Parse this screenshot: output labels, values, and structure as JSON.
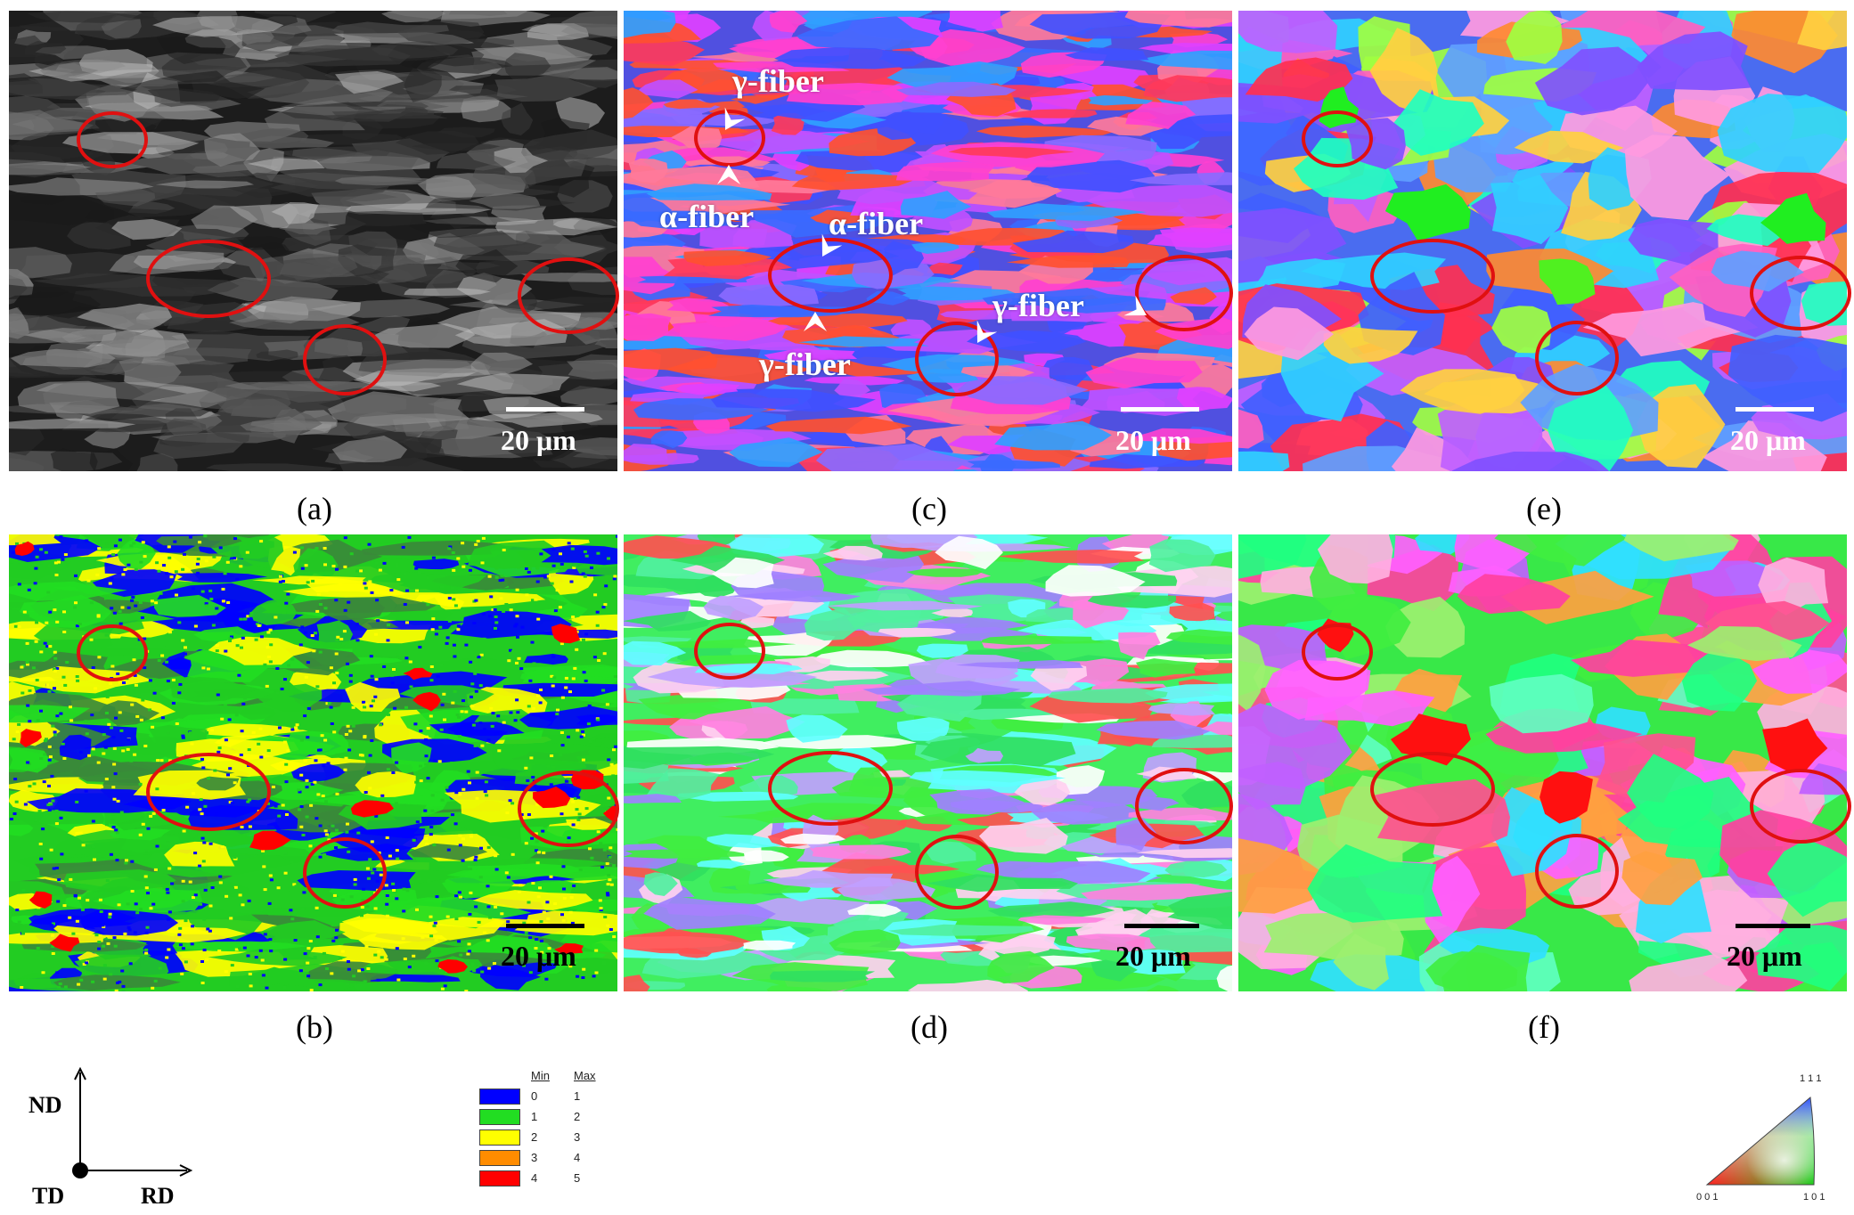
{
  "panels": [
    {
      "id": "a",
      "caption": "(a)",
      "scale": "20 μm",
      "style": "gray",
      "scale_color": "#ffffff"
    },
    {
      "id": "c",
      "caption": "(c)",
      "scale": "20 μm",
      "style": "ipf_nd_def",
      "scale_color": "#ffffff"
    },
    {
      "id": "e",
      "caption": "(e)",
      "scale": "20 μm",
      "style": "ipf_nd_rex",
      "scale_color": "#ffffff"
    },
    {
      "id": "b",
      "caption": "(b)",
      "scale": "20 μm",
      "style": "kam",
      "scale_color": "#000000"
    },
    {
      "id": "d",
      "caption": "(d)",
      "scale": "20 μm",
      "style": "ipf_rd_def",
      "scale_color": "#000000"
    },
    {
      "id": "f",
      "caption": "(f)",
      "scale": "20 μm",
      "style": "ipf_rd_rex",
      "scale_color": "#000000"
    }
  ],
  "fiber_labels": [
    "γ-fiber",
    "α-fiber",
    "α-fiber",
    "γ-fiber",
    "γ-fiber"
  ],
  "axes": {
    "nd": "ND",
    "td": "TD",
    "rd": "RD"
  },
  "kam_legend": {
    "header_min": "Min",
    "header_max": "Max",
    "rows": [
      {
        "min": "0",
        "max": "1",
        "color": "#0000ff"
      },
      {
        "min": "1",
        "max": "2",
        "color": "#22dd22"
      },
      {
        "min": "2",
        "max": "3",
        "color": "#ffff00"
      },
      {
        "min": "3",
        "max": "4",
        "color": "#ff8c00"
      },
      {
        "min": "4",
        "max": "5",
        "color": "#ff0000"
      }
    ]
  },
  "ipf_key": {
    "top": "1 1 1",
    "left": "0 0 1",
    "right": "1 0 1"
  },
  "colors": {
    "circle": "#e01010",
    "kam_red": "#ff0000"
  }
}
